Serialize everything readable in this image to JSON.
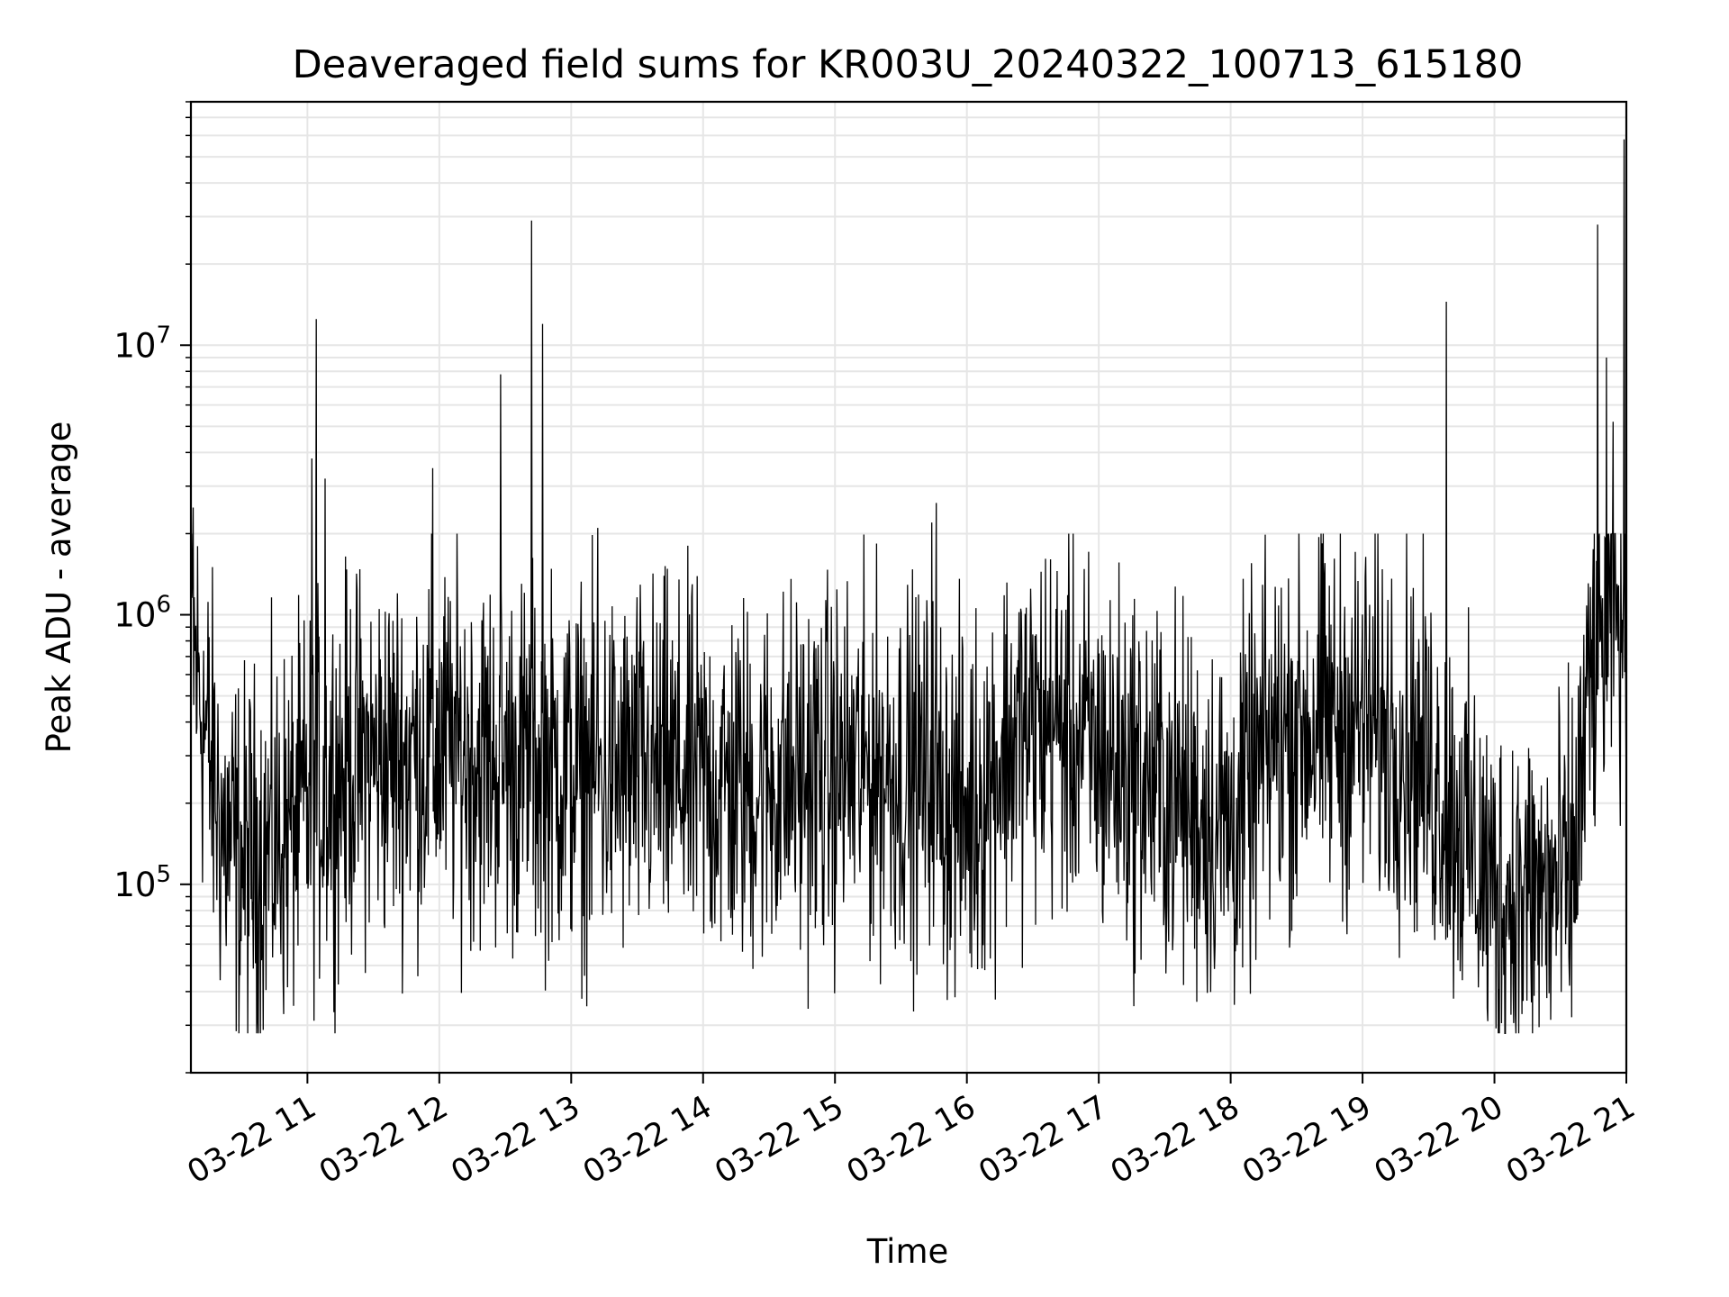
{
  "chart_data": {
    "type": "line",
    "title": "Deaveraged field sums for KR003U_20240322_100713_615180",
    "xlabel": "Time",
    "ylabel": "Peak ADU - average",
    "x_ticks": [
      "03-22 11",
      "03-22 12",
      "03-22 13",
      "03-22 14",
      "03-22 15",
      "03-22 16",
      "03-22 17",
      "03-22 18",
      "03-22 19",
      "03-22 20",
      "03-22 21"
    ],
    "y_ticks": [
      {
        "value": 100000,
        "base": "10",
        "exp": "5"
      },
      {
        "value": 1000000,
        "base": "10",
        "exp": "6"
      },
      {
        "value": 10000000,
        "base": "10",
        "exp": "7"
      }
    ],
    "xlim": [
      "2024-03-22 10:07",
      "2024-03-22 21:00"
    ],
    "ylim": [
      20000,
      80000000
    ],
    "yscale": "log",
    "grid": true,
    "line_color": "#000000",
    "series": [
      {
        "x": [
          "2024-03-22 10:07",
          "2024-03-22 10:10",
          "2024-03-22 10:13",
          "2024-03-22 10:17",
          "2024-03-22 10:22",
          "2024-03-22 10:30",
          "2024-03-22 10:40",
          "2024-03-22 10:52",
          "2024-03-22 11:05",
          "2024-03-22 11:20",
          "2024-03-22 11:40",
          "2024-03-22 12:00",
          "2024-03-22 12:20",
          "2024-03-22 12:40",
          "2024-03-22 13:00",
          "2024-03-22 13:20",
          "2024-03-22 13:40",
          "2024-03-22 14:00",
          "2024-03-22 14:20",
          "2024-03-22 14:40",
          "2024-03-22 15:00",
          "2024-03-22 15:20",
          "2024-03-22 15:40",
          "2024-03-22 16:00",
          "2024-03-22 16:20",
          "2024-03-22 16:40",
          "2024-03-22 17:00",
          "2024-03-22 17:20",
          "2024-03-22 17:40",
          "2024-03-22 18:00",
          "2024-03-22 18:20",
          "2024-03-22 18:40",
          "2024-03-22 19:00",
          "2024-03-22 19:20",
          "2024-03-22 19:40",
          "2024-03-22 20:00",
          "2024-03-22 20:20",
          "2024-03-22 20:35",
          "2024-03-22 20:45",
          "2024-03-22 20:55",
          "2024-03-22 21:00"
        ],
        "y": [
          800000,
          600000,
          400000,
          250000,
          150000,
          120000,
          130000,
          160000,
          220000,
          280000,
          300000,
          320000,
          300000,
          280000,
          260000,
          250000,
          260000,
          240000,
          230000,
          250000,
          260000,
          270000,
          250000,
          180000,
          350000,
          400000,
          300000,
          250000,
          200000,
          160000,
          350000,
          400000,
          400000,
          350000,
          200000,
          90000,
          90000,
          100000,
          700000,
          900000,
          1000000
        ]
      }
    ],
    "spikes": [
      {
        "x": "2024-03-22 10:08",
        "y": 2500000
      },
      {
        "x": "2024-03-22 11:02",
        "y": 3800000
      },
      {
        "x": "2024-03-22 11:04",
        "y": 12500000
      },
      {
        "x": "2024-03-22 11:08",
        "y": 3200000
      },
      {
        "x": "2024-03-22 11:57",
        "y": 3500000
      },
      {
        "x": "2024-03-22 12:28",
        "y": 7800000
      },
      {
        "x": "2024-03-22 12:42",
        "y": 29000000
      },
      {
        "x": "2024-03-22 12:47",
        "y": 12000000
      },
      {
        "x": "2024-03-22 13:12",
        "y": 2100000
      },
      {
        "x": "2024-03-22 15:44",
        "y": 2200000
      },
      {
        "x": "2024-03-22 15:46",
        "y": 2600000
      },
      {
        "x": "2024-03-22 19:38",
        "y": 14500000
      },
      {
        "x": "2024-03-22 20:47",
        "y": 28000000
      },
      {
        "x": "2024-03-22 20:51",
        "y": 9000000
      },
      {
        "x": "2024-03-22 20:54",
        "y": 5200000
      },
      {
        "x": "2024-03-22 20:59",
        "y": 58000000
      }
    ]
  }
}
